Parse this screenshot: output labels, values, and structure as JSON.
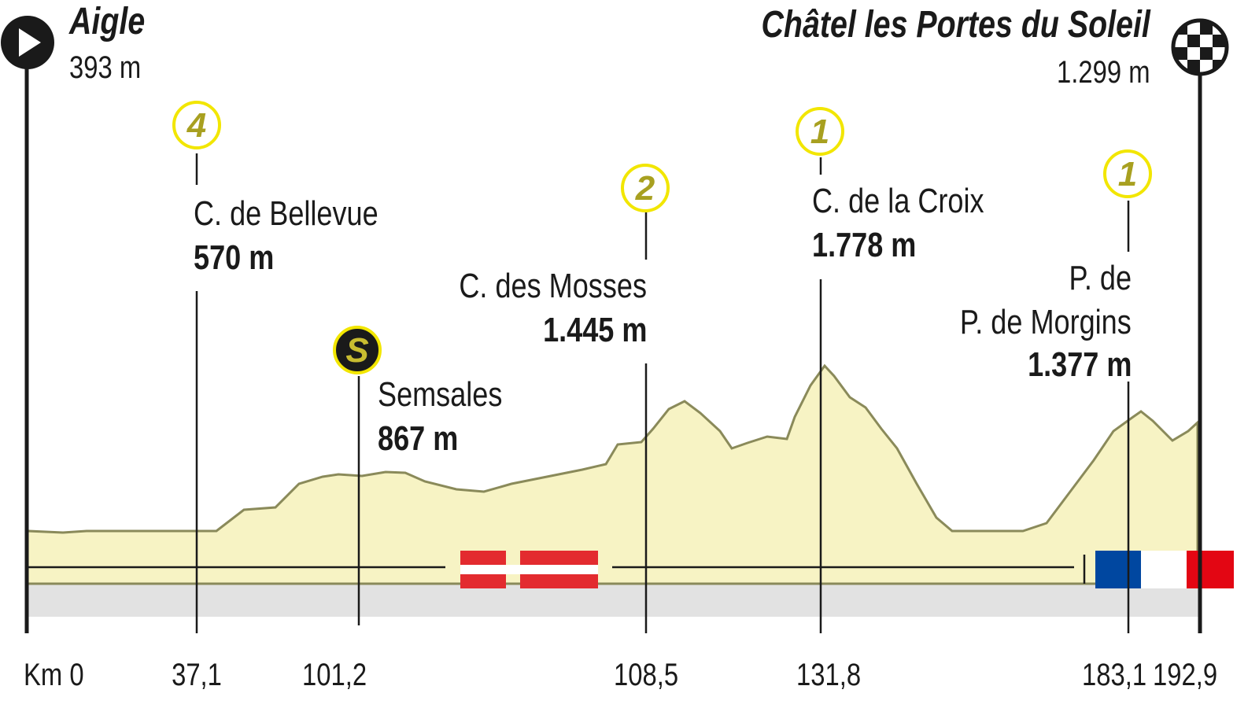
{
  "start": {
    "name": "Aigle",
    "altitude": "393 m",
    "icon": "play-icon"
  },
  "finish": {
    "name": "Châtel les Portes du Soleil",
    "altitude": "1.299 m",
    "icon": "checkered-flag-icon"
  },
  "colors": {
    "profile_fill": "#f7f3c4",
    "profile_line": "#8a8a5a",
    "badge_ring": "#f2e600",
    "badge_text": "#a8a020",
    "switzerland_red": "#e32b2f",
    "france_blue": "#0047a0",
    "france_red": "#e30613"
  },
  "countries": [
    "Switzerland",
    "France"
  ],
  "chart_data": {
    "type": "area",
    "x_labels": [
      "Km 0",
      "37,1",
      "101,2",
      "108,5",
      "131,8",
      "183,1",
      "192,9"
    ],
    "markers": [
      {
        "category": "4",
        "name": "C. de Bellevue",
        "altitude": "570 m",
        "km": "37,1"
      },
      {
        "category": "S",
        "name": "Semsales",
        "altitude": "867 m",
        "km": "101,2"
      },
      {
        "category": "2",
        "name": "C. des Mosses",
        "altitude": "1.445 m",
        "km": "108,5"
      },
      {
        "category": "1",
        "name": "C. de la Croix",
        "altitude": "1.778 m",
        "km": "131,8"
      },
      {
        "category": "1",
        "name_line1": "P. de",
        "name_line2": "P. de Morgins",
        "altitude": "1.377 m",
        "km": "183,1"
      }
    ]
  }
}
